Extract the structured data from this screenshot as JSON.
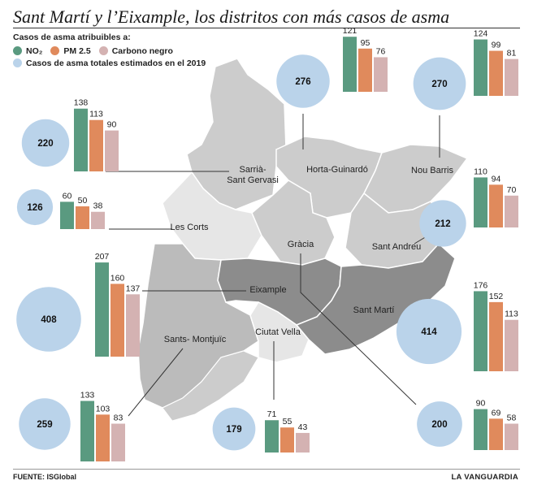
{
  "title": "Sant Martí y l’Eixample, los distritos con más casos de asma",
  "legend": {
    "title": "Casos de asma atribuibles a:",
    "no2": "NO₂",
    "pm25": "PM 2.5",
    "carbon": "Carbono negro",
    "total": "Casos de asma totales estimados en el 2019"
  },
  "colors": {
    "no2": "#5a9a80",
    "pm25": "#e08a5c",
    "carbon": "#d4b2b2",
    "total": "#bad3ea",
    "map_light": "#cccccc",
    "map_mid": "#bbbbbb",
    "map_dark": "#8c8c8c",
    "map_pale": "#e6e6e6"
  },
  "footer": {
    "source_label": "FUENTE:",
    "source_name": "ISGlobal",
    "brand": "LA VANGUARDIA"
  },
  "chart_data": {
    "type": "bar",
    "title": "Sant Martí y l’Eixample, los distritos con más casos de asma",
    "series_names": [
      "NO₂",
      "PM 2.5",
      "Carbono negro"
    ],
    "total_name": "Casos de asma totales estimados en el 2019",
    "districts": [
      {
        "key": "sarria",
        "label": "Sarrià-\nSant Gervasi",
        "no2": 138,
        "pm25": 113,
        "carbon": 90,
        "total": 220
      },
      {
        "key": "lescorts",
        "label": "Les Corts",
        "no2": 60,
        "pm25": 50,
        "carbon": 38,
        "total": 126
      },
      {
        "key": "eixample",
        "label": "Eixample",
        "no2": 207,
        "pm25": 160,
        "carbon": 137,
        "total": 408
      },
      {
        "key": "sants",
        "label": "Sants- Montjuïc",
        "no2": 133,
        "pm25": 103,
        "carbon": 83,
        "total": 259
      },
      {
        "key": "ciutat",
        "label": "Ciutat Vella",
        "no2": 71,
        "pm25": 55,
        "carbon": 43,
        "total": 179
      },
      {
        "key": "horta",
        "label": "Horta-Guinardó",
        "no2": 121,
        "pm25": 95,
        "carbon": 76,
        "total": 276
      },
      {
        "key": "noubarris",
        "label": "Nou Barris",
        "no2": 124,
        "pm25": 99,
        "carbon": 81,
        "total": 270
      },
      {
        "key": "santandreu",
        "label": "Sant Andreu",
        "no2": 110,
        "pm25": 94,
        "carbon": 70,
        "total": 212
      },
      {
        "key": "santmarti",
        "label": "Sant Martí",
        "no2": 176,
        "pm25": 152,
        "carbon": 113,
        "total": 414
      },
      {
        "key": "gracia",
        "label": "Gràcia",
        "no2": 90,
        "pm25": 69,
        "carbon": 58,
        "total": 200
      }
    ]
  }
}
